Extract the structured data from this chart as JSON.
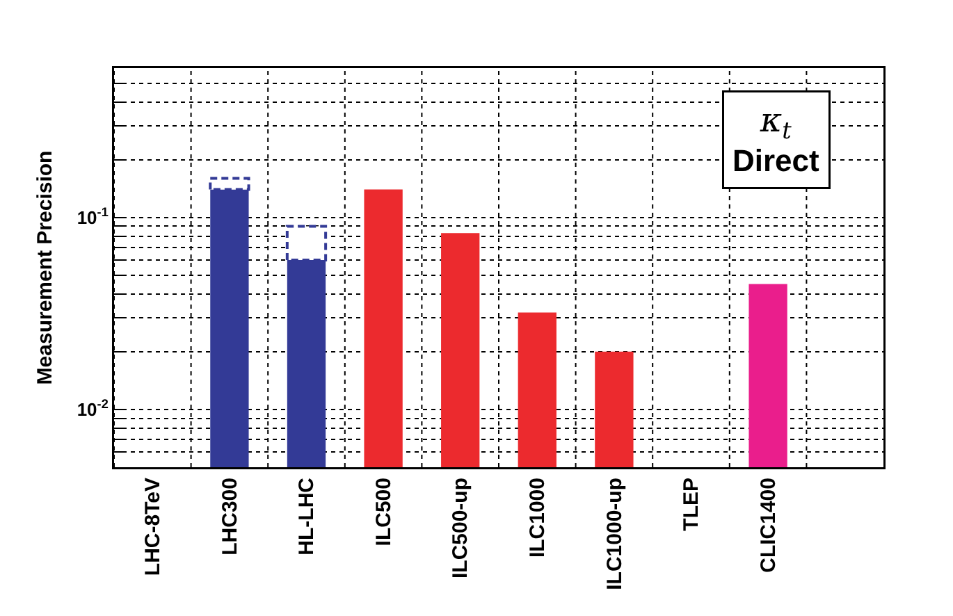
{
  "chart_data": {
    "type": "bar",
    "ylabel": "Measurement Precision",
    "categories": [
      "LHC-8TeV",
      "LHC300",
      "HL-LHC",
      "ILC500",
      "ILC500-up",
      "ILC1000",
      "ILC1000-up",
      "TLEP",
      "CLIC1400"
    ],
    "series": [
      {
        "colors": [
          "#333a96",
          "#333a96",
          "#333a96",
          "#ec2a2e",
          "#ec2a2e",
          "#ec2a2e",
          "#ec2a2e",
          "#ec2a2e",
          "#ea1e8c"
        ],
        "values": [
          null,
          0.14,
          0.06,
          0.14,
          0.083,
          0.032,
          0.02,
          null,
          0.045
        ]
      },
      {
        "color": "#333a96",
        "line_style": "dashed",
        "base": [
          null,
          0.14,
          0.06,
          null,
          null,
          null,
          null,
          null,
          null
        ],
        "values": [
          null,
          0.02,
          0.03,
          null,
          null,
          null,
          null,
          null,
          null
        ]
      }
    ],
    "log": true,
    "ylim": [
      0.005,
      0.6
    ],
    "yticks": [
      {
        "value": 0.005,
        "label": null
      },
      {
        "value": 0.006,
        "label": null
      },
      {
        "value": 0.007,
        "label": null
      },
      {
        "value": 0.008,
        "label": null
      },
      {
        "value": 0.009,
        "label": null
      },
      {
        "value": 0.01,
        "label": "10$^{-2}$"
      },
      {
        "value": 0.02,
        "label": null
      },
      {
        "value": 0.03,
        "label": null
      },
      {
        "value": 0.04,
        "label": null
      },
      {
        "value": 0.05,
        "label": null
      },
      {
        "value": 0.06,
        "label": null
      },
      {
        "value": 0.07,
        "label": null
      },
      {
        "value": 0.08,
        "label": null
      },
      {
        "value": 0.09,
        "label": null
      },
      {
        "value": 0.1,
        "label": "10$^{-1}$"
      },
      {
        "value": 0.2,
        "label": null
      },
      {
        "value": 0.3,
        "label": null
      },
      {
        "value": 0.4,
        "label": null
      },
      {
        "value": 0.5,
        "label": null
      }
    ],
    "grid": true,
    "annotations": [
      "κ$_{t}$\nDirect"
    ]
  }
}
